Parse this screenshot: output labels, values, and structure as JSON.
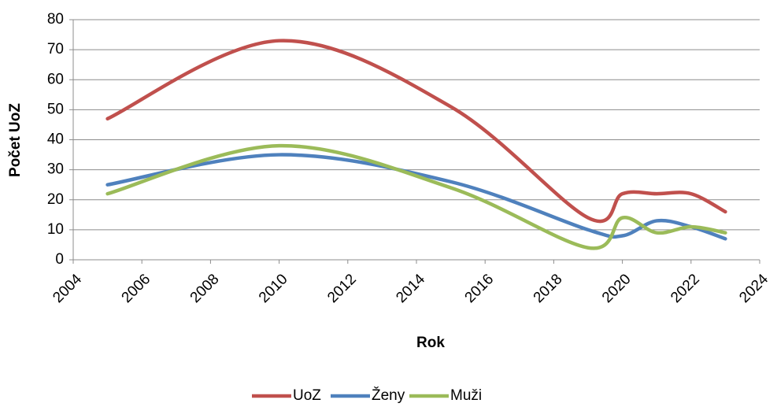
{
  "chart_data": {
    "type": "line",
    "x_label": "Rok",
    "y_label": "Počet UoZ",
    "x": [
      2005,
      2010,
      2015,
      2019,
      2020,
      2021,
      2022,
      2023
    ],
    "series": [
      {
        "name": "UoZ",
        "color": "#c0504d",
        "values": [
          47,
          73,
          51,
          14,
          22,
          22,
          22,
          16
        ]
      },
      {
        "name": "Ženy",
        "color": "#4f81bd",
        "values": [
          25,
          35,
          26,
          10,
          8,
          13,
          11,
          7
        ]
      },
      {
        "name": "Muži",
        "color": "#9bbb59",
        "values": [
          22,
          38,
          24,
          4,
          14,
          9,
          11,
          9
        ]
      }
    ],
    "xlim": [
      2004,
      2024
    ],
    "xticks": [
      2004,
      2006,
      2008,
      2010,
      2012,
      2014,
      2016,
      2018,
      2020,
      2022,
      2024
    ],
    "ylim": [
      0,
      80
    ],
    "yticks": [
      0,
      10,
      20,
      30,
      40,
      50,
      60,
      70,
      80
    ],
    "grid": true,
    "legend": "bottom",
    "smooth": true
  }
}
